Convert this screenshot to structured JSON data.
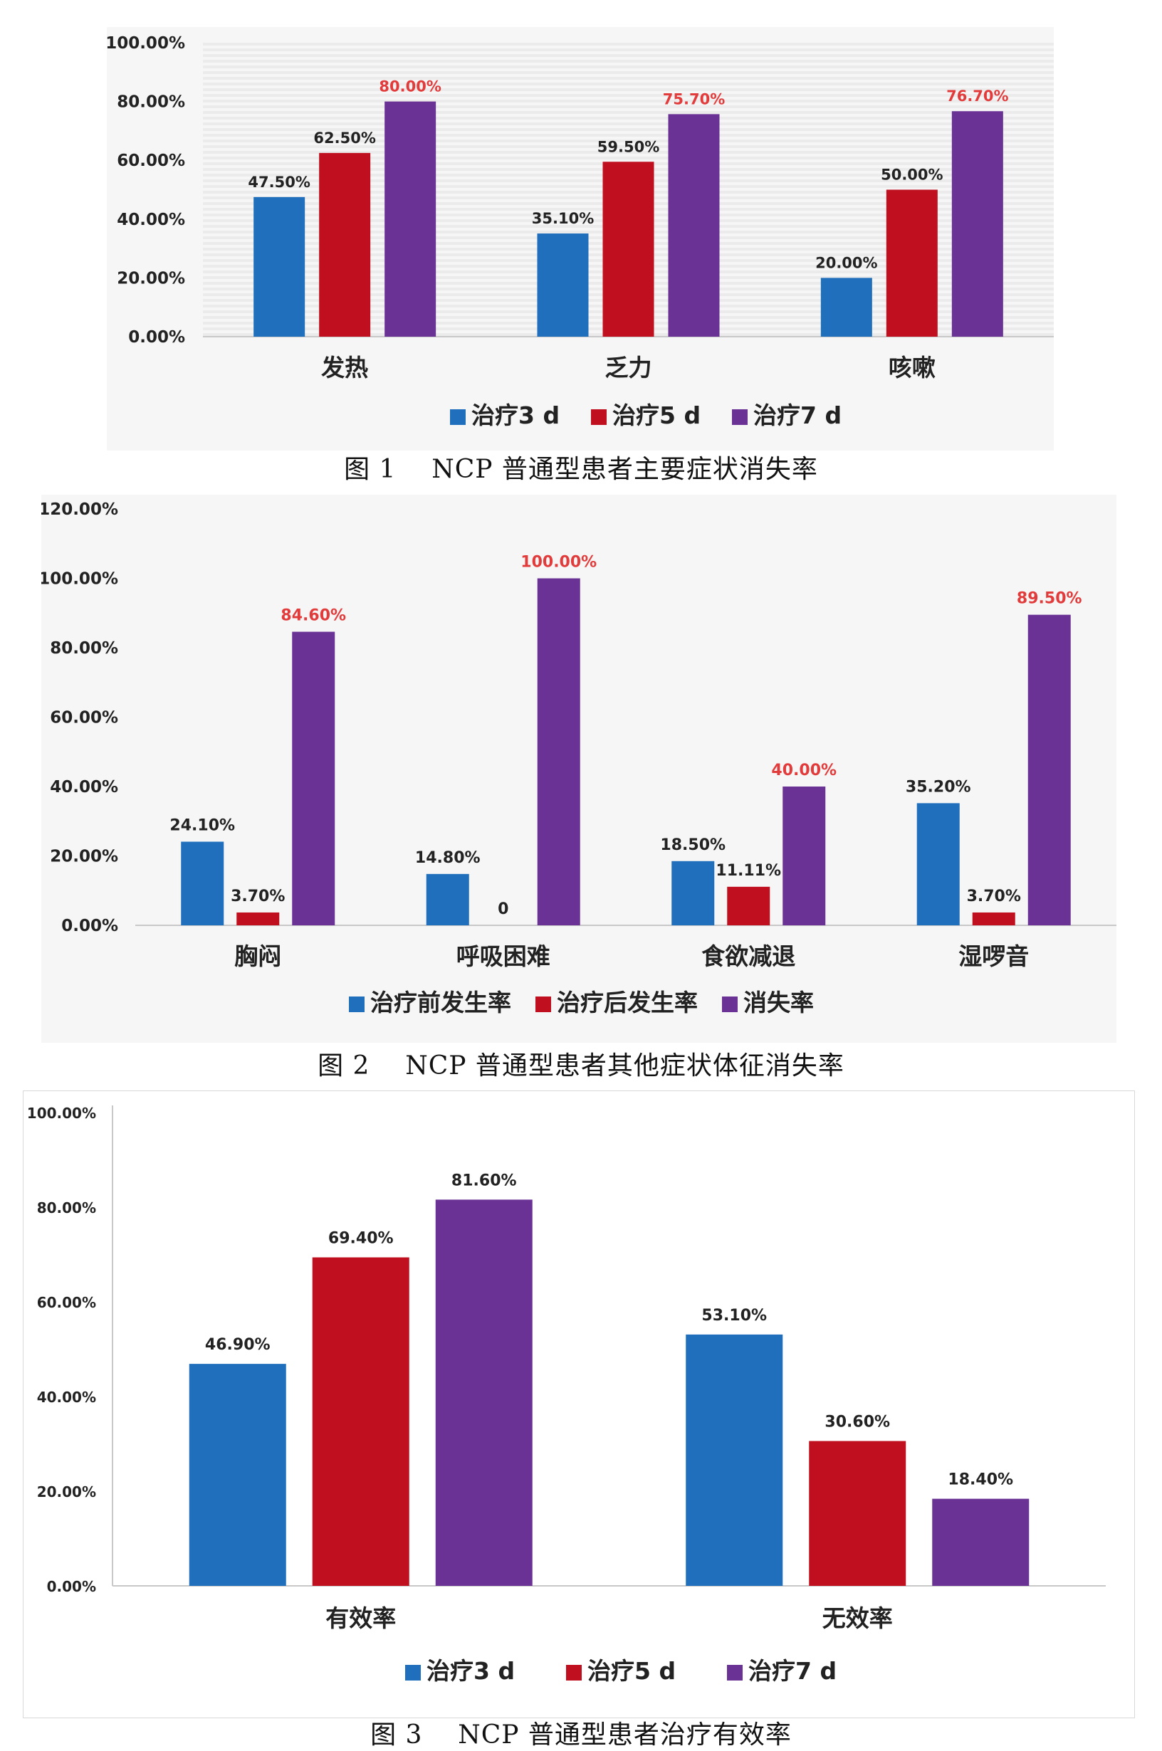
{
  "colors": {
    "blue": "#1f6fbd",
    "red": "#c0101f",
    "purple": "#6a3294",
    "highlight_label": "#e23b3b"
  },
  "charts": [
    {
      "caption": {
        "num": "图 1",
        "text": "NCP 普通型患者主要症状消失率"
      },
      "chart_data": {
        "type": "bar",
        "categories": [
          "发热",
          "乏力",
          "咳嗽"
        ],
        "series": [
          {
            "name": "治疗3 d",
            "values": [
              47.5,
              35.1,
              20.0
            ],
            "labels": [
              "47.50%",
              "35.10%",
              "20.00%"
            ]
          },
          {
            "name": "治疗5 d",
            "values": [
              62.5,
              59.5,
              50.0
            ],
            "labels": [
              "62.50%",
              "59.50%",
              "50.00%"
            ]
          },
          {
            "name": "治疗7 d",
            "values": [
              80.0,
              75.7,
              76.7
            ],
            "labels": [
              "80.00%",
              "75.70%",
              "76.70%"
            ]
          }
        ],
        "yticks": [
          "0.00%",
          "20.00%",
          "40.00%",
          "60.00%",
          "80.00%",
          "100.00%"
        ],
        "ylim": [
          0,
          100
        ],
        "highlight_series": 2,
        "legend": "bottom",
        "grid": "striped"
      }
    },
    {
      "caption": {
        "num": "图 2",
        "text": "NCP 普通型患者其他症状体征消失率"
      },
      "chart_data": {
        "type": "bar",
        "categories": [
          "胸闷",
          "呼吸困难",
          "食欲减退",
          "湿啰音"
        ],
        "series": [
          {
            "name": "治疗前发生率",
            "values": [
              24.1,
              14.8,
              18.5,
              35.2
            ],
            "labels": [
              "24.10%",
              "14.80%",
              "18.50%",
              "35.20%"
            ]
          },
          {
            "name": "治疗后发生率",
            "values": [
              3.7,
              0,
              11.11,
              3.7
            ],
            "labels": [
              "3.70%",
              "0",
              "11.11%",
              "3.70%"
            ]
          },
          {
            "name": "消失率",
            "values": [
              84.6,
              100.0,
              40.0,
              89.5
            ],
            "labels": [
              "84.60%",
              "100.00%",
              "40.00%",
              "89.50%"
            ]
          }
        ],
        "yticks": [
          "0.00%",
          "20.00%",
          "40.00%",
          "60.00%",
          "80.00%",
          "100.00%",
          "120.00%"
        ],
        "ylim": [
          0,
          120
        ],
        "highlight_series": 2,
        "legend": "bottom",
        "grid": "none"
      }
    },
    {
      "caption": {
        "num": "图 3",
        "text": "NCP 普通型患者治疗有效率"
      },
      "chart_data": {
        "type": "bar",
        "categories": [
          "有效率",
          "无效率"
        ],
        "series": [
          {
            "name": "治疗3 d",
            "values": [
              46.9,
              53.1
            ],
            "labels": [
              "46.90%",
              "53.10%"
            ]
          },
          {
            "name": "治疗5 d",
            "values": [
              69.4,
              30.6
            ],
            "labels": [
              "69.40%",
              "30.60%"
            ]
          },
          {
            "name": "治疗7 d",
            "values": [
              81.6,
              18.4
            ],
            "labels": [
              "81.60%",
              "18.40%"
            ]
          }
        ],
        "yticks": [
          "0.00%",
          "20.00%",
          "40.00%",
          "60.00%",
          "80.00%",
          "100.00%"
        ],
        "ylim": [
          0,
          100
        ],
        "highlight_series": -1,
        "legend": "bottom",
        "grid": "none"
      }
    }
  ]
}
